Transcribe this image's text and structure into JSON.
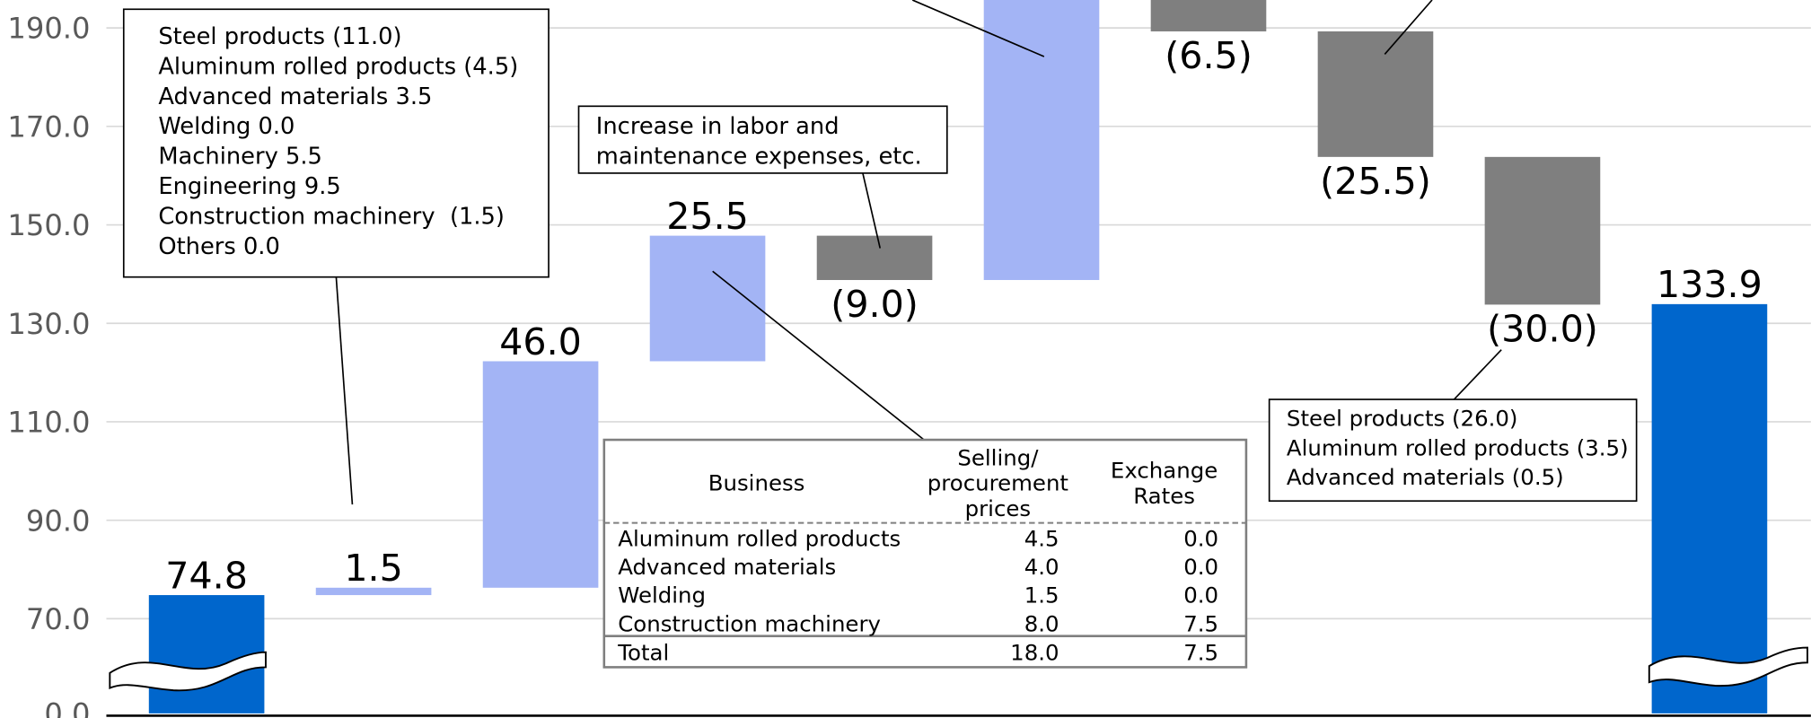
{
  "chart_data": {
    "type": "waterfall",
    "categories": [
      null,
      null,
      null,
      null,
      null,
      null,
      null,
      null,
      null,
      null
    ],
    "values": [
      74.8,
      1.5,
      46.0,
      25.5,
      -9.0,
      57.0,
      -6.5,
      -25.5,
      -30.0,
      133.9
    ],
    "value_labels": [
      "74.8",
      "1.5",
      "46.0",
      "25.5",
      "(9.0)",
      null,
      "(6.5)",
      "(25.5)",
      "(30.0)",
      "133.9"
    ],
    "measure": [
      "absolute",
      "relative",
      "relative",
      "relative",
      "relative",
      "relative",
      "relative",
      "relative",
      "relative",
      "total"
    ],
    "colors": {
      "absolute": "#0066cc",
      "total": "#0066cc",
      "increase": "#a3b4f5",
      "decrease": "#7f7f7f"
    },
    "ylim": [
      0,
      196
    ],
    "axis_break": 70,
    "yticks": [
      {
        "value": 0,
        "label": "0.0"
      },
      {
        "value": 70,
        "label": "70.0"
      },
      {
        "value": 90,
        "label": "90.0"
      },
      {
        "value": 110,
        "label": "110.0"
      },
      {
        "value": 130,
        "label": "130.0"
      },
      {
        "value": 150,
        "label": "150.0"
      },
      {
        "value": 170,
        "label": "170.0"
      },
      {
        "value": 190,
        "label": "190.0"
      }
    ],
    "grid": true,
    "annotations": {
      "callouts": [
        {
          "lines": [
            "Steel products (11.0)",
            "Aluminum rolled products (4.5)",
            "Advanced materials 3.5",
            "Welding 0.0",
            "Machinery 5.5",
            "Engineering 9.5",
            "Construction machinery  (1.5)",
            "Others 0.0"
          ]
        },
        {
          "lines": [
            "Increase in labor and",
            "maintenance expenses, etc."
          ]
        },
        {
          "lines": [
            "Steel products (26.0)",
            "Aluminum rolled products (3.5)",
            "Advanced materials (0.5)"
          ]
        }
      ],
      "table": {
        "header": [
          [
            "Business"
          ],
          [
            "Selling/",
            "procurement",
            "prices"
          ],
          [
            "Exchange",
            "Rates"
          ]
        ],
        "rows": [
          [
            "Aluminum rolled products",
            "4.5",
            "0.0"
          ],
          [
            "Advanced materials",
            "4.0",
            "0.0"
          ],
          [
            "Welding",
            "1.5",
            "0.0"
          ],
          [
            "Construction machinery",
            "8.0",
            "7.5"
          ]
        ],
        "total": [
          "Total",
          "18.0",
          "7.5"
        ]
      }
    }
  }
}
